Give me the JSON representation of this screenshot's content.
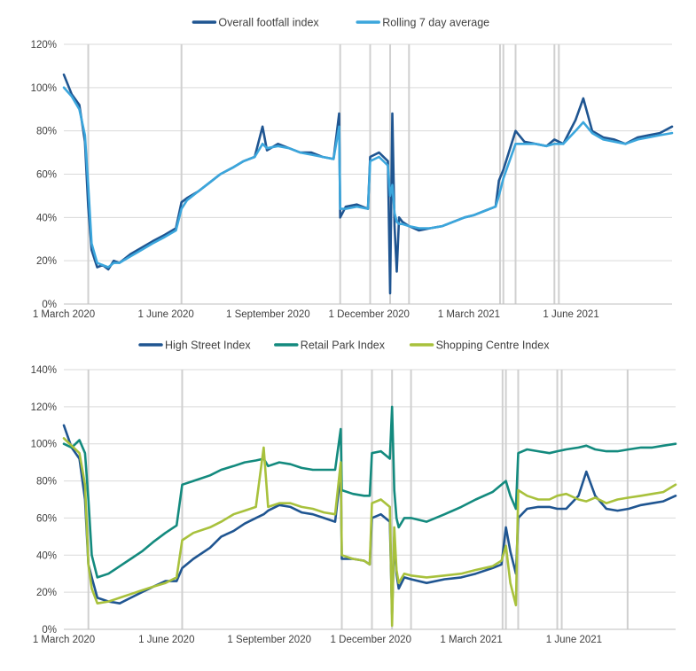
{
  "chart_data": [
    {
      "type": "line",
      "title": "",
      "xlabel": "",
      "ylabel": "",
      "ylim": [
        0,
        1.2
      ],
      "xlim": [
        "2020-03-01",
        "2021-08-31"
      ],
      "y_format": "percent",
      "y_ticks": [
        0,
        0.2,
        0.4,
        0.6,
        0.8,
        1.0,
        1.2
      ],
      "y_tick_labels": [
        "0%",
        "20%",
        "40%",
        "60%",
        "80%",
        "100%",
        "120%"
      ],
      "x_ticks": [
        "2020-03-01",
        "2020-06-01",
        "2020-09-01",
        "2020-12-01",
        "2021-03-01",
        "2021-06-01"
      ],
      "x_tick_labels": [
        "1 March 2020",
        "1 June 2020",
        "1 September 2020",
        "1 December 2020",
        "1 March 2021",
        "1 June 2021"
      ],
      "grid": true,
      "legend_position": "top",
      "event_lines": [
        "2020-03-23",
        "2020-06-15",
        "2020-11-05",
        "2020-12-02",
        "2020-12-20",
        "2021-01-06",
        "2021-03-29",
        "2021-04-01",
        "2021-04-12",
        "2021-05-17",
        "2021-05-21"
      ],
      "series": [
        {
          "name": "Overall footfall index",
          "color": "#1f5591",
          "x": [
            "2020-03-01",
            "2020-03-08",
            "2020-03-15",
            "2020-03-20",
            "2020-03-23",
            "2020-03-26",
            "2020-03-31",
            "2020-04-05",
            "2020-04-10",
            "2020-04-15",
            "2020-04-20",
            "2020-04-30",
            "2020-05-10",
            "2020-05-20",
            "2020-05-31",
            "2020-06-10",
            "2020-06-15",
            "2020-06-20",
            "2020-06-30",
            "2020-07-10",
            "2020-07-20",
            "2020-07-31",
            "2020-08-10",
            "2020-08-20",
            "2020-08-27",
            "2020-08-31",
            "2020-09-10",
            "2020-09-20",
            "2020-09-30",
            "2020-10-10",
            "2020-10-20",
            "2020-10-30",
            "2020-11-04",
            "2020-11-05",
            "2020-11-10",
            "2020-11-20",
            "2020-11-30",
            "2020-12-02",
            "2020-12-10",
            "2020-12-18",
            "2020-12-20",
            "2020-12-22",
            "2020-12-24",
            "2020-12-26",
            "2020-12-28",
            "2020-12-31",
            "2021-01-06",
            "2021-01-15",
            "2021-01-25",
            "2021-02-05",
            "2021-02-15",
            "2021-02-25",
            "2021-03-05",
            "2021-03-15",
            "2021-03-25",
            "2021-03-28",
            "2021-04-01",
            "2021-04-12",
            "2021-04-20",
            "2021-04-30",
            "2021-05-10",
            "2021-05-17",
            "2021-05-25",
            "2021-06-05",
            "2021-06-12",
            "2021-06-20",
            "2021-06-30",
            "2021-07-10",
            "2021-07-20",
            "2021-07-31",
            "2021-08-10",
            "2021-08-20",
            "2021-08-31"
          ],
          "y": [
            1.06,
            0.97,
            0.92,
            0.75,
            0.45,
            0.25,
            0.17,
            0.18,
            0.16,
            0.2,
            0.19,
            0.23,
            0.26,
            0.29,
            0.32,
            0.35,
            0.47,
            0.49,
            0.52,
            0.56,
            0.6,
            0.63,
            0.66,
            0.68,
            0.82,
            0.71,
            0.74,
            0.72,
            0.7,
            0.7,
            0.68,
            0.67,
            0.88,
            0.4,
            0.45,
            0.46,
            0.44,
            0.68,
            0.7,
            0.66,
            0.05,
            0.88,
            0.36,
            0.15,
            0.4,
            0.38,
            0.36,
            0.34,
            0.35,
            0.36,
            0.38,
            0.4,
            0.41,
            0.43,
            0.45,
            0.57,
            0.62,
            0.8,
            0.75,
            0.74,
            0.73,
            0.76,
            0.74,
            0.85,
            0.95,
            0.8,
            0.77,
            0.76,
            0.74,
            0.77,
            0.78,
            0.79,
            0.82
          ]
        },
        {
          "name": "Rolling 7 day average",
          "color": "#3ba6dc",
          "x": [
            "2020-03-01",
            "2020-03-08",
            "2020-03-15",
            "2020-03-20",
            "2020-03-23",
            "2020-03-26",
            "2020-03-31",
            "2020-04-05",
            "2020-04-10",
            "2020-04-15",
            "2020-04-20",
            "2020-04-30",
            "2020-05-10",
            "2020-05-20",
            "2020-05-31",
            "2020-06-10",
            "2020-06-15",
            "2020-06-20",
            "2020-06-30",
            "2020-07-10",
            "2020-07-20",
            "2020-07-31",
            "2020-08-10",
            "2020-08-20",
            "2020-08-27",
            "2020-08-31",
            "2020-09-10",
            "2020-09-20",
            "2020-09-30",
            "2020-10-10",
            "2020-10-20",
            "2020-10-30",
            "2020-11-04",
            "2020-11-05",
            "2020-11-10",
            "2020-11-20",
            "2020-11-30",
            "2020-12-02",
            "2020-12-10",
            "2020-12-18",
            "2020-12-20",
            "2020-12-22",
            "2020-12-24",
            "2020-12-26",
            "2020-12-28",
            "2020-12-31",
            "2021-01-06",
            "2021-01-15",
            "2021-01-25",
            "2021-02-05",
            "2021-02-15",
            "2021-02-25",
            "2021-03-05",
            "2021-03-15",
            "2021-03-25",
            "2021-03-28",
            "2021-04-01",
            "2021-04-12",
            "2021-04-20",
            "2021-04-30",
            "2021-05-10",
            "2021-05-17",
            "2021-05-25",
            "2021-06-05",
            "2021-06-12",
            "2021-06-20",
            "2021-06-30",
            "2021-07-10",
            "2021-07-20",
            "2021-07-31",
            "2021-08-10",
            "2021-08-20",
            "2021-08-31"
          ],
          "y": [
            1.0,
            0.96,
            0.9,
            0.78,
            0.55,
            0.28,
            0.19,
            0.18,
            0.17,
            0.19,
            0.19,
            0.22,
            0.25,
            0.28,
            0.31,
            0.34,
            0.44,
            0.48,
            0.52,
            0.56,
            0.6,
            0.63,
            0.66,
            0.68,
            0.74,
            0.72,
            0.73,
            0.72,
            0.7,
            0.69,
            0.68,
            0.67,
            0.82,
            0.44,
            0.44,
            0.45,
            0.44,
            0.66,
            0.68,
            0.64,
            0.5,
            0.55,
            0.42,
            0.38,
            0.37,
            0.37,
            0.36,
            0.35,
            0.35,
            0.36,
            0.38,
            0.4,
            0.41,
            0.43,
            0.45,
            0.5,
            0.58,
            0.74,
            0.74,
            0.74,
            0.73,
            0.74,
            0.74,
            0.8,
            0.84,
            0.79,
            0.76,
            0.75,
            0.74,
            0.76,
            0.77,
            0.78,
            0.79
          ]
        }
      ]
    },
    {
      "type": "line",
      "title": "",
      "xlabel": "",
      "ylabel": "",
      "ylim": [
        0,
        1.4
      ],
      "xlim": [
        "2020-03-01",
        "2021-08-31"
      ],
      "y_format": "percent",
      "y_ticks": [
        0,
        0.2,
        0.4,
        0.6,
        0.8,
        1.0,
        1.2,
        1.4
      ],
      "y_tick_labels": [
        "0%",
        "20%",
        "40%",
        "60%",
        "80%",
        "100%",
        "120%",
        "140%"
      ],
      "x_ticks": [
        "2020-03-01",
        "2020-06-01",
        "2020-09-01",
        "2020-12-01",
        "2021-03-01",
        "2021-06-01"
      ],
      "x_tick_labels": [
        "1 March 2020",
        "1 June 2020",
        "1 September 2020",
        "1 December 2020",
        "1 March 2021",
        "1 June 2021"
      ],
      "grid": true,
      "legend_position": "top",
      "event_lines": [
        "2020-03-23",
        "2020-06-15",
        "2020-11-05",
        "2020-12-02",
        "2020-12-20",
        "2021-01-06",
        "2021-03-29",
        "2021-04-01",
        "2021-04-12",
        "2021-05-17",
        "2021-05-21",
        "2021-07-19"
      ],
      "series": [
        {
          "name": "High Street Index",
          "color": "#1f5591",
          "x": [
            "2020-03-01",
            "2020-03-08",
            "2020-03-15",
            "2020-03-20",
            "2020-03-23",
            "2020-03-26",
            "2020-03-31",
            "2020-04-10",
            "2020-04-20",
            "2020-04-30",
            "2020-05-10",
            "2020-05-20",
            "2020-05-31",
            "2020-06-10",
            "2020-06-15",
            "2020-06-25",
            "2020-07-10",
            "2020-07-20",
            "2020-07-31",
            "2020-08-10",
            "2020-08-20",
            "2020-08-27",
            "2020-08-31",
            "2020-09-10",
            "2020-09-20",
            "2020-09-30",
            "2020-10-10",
            "2020-10-20",
            "2020-10-30",
            "2020-11-04",
            "2020-11-05",
            "2020-11-15",
            "2020-11-25",
            "2020-11-30",
            "2020-12-02",
            "2020-12-10",
            "2020-12-18",
            "2020-12-20",
            "2020-12-22",
            "2020-12-24",
            "2020-12-26",
            "2020-12-31",
            "2021-01-06",
            "2021-01-20",
            "2021-02-05",
            "2021-02-20",
            "2021-03-05",
            "2021-03-20",
            "2021-03-28",
            "2021-04-01",
            "2021-04-05",
            "2021-04-10",
            "2021-04-12",
            "2021-04-20",
            "2021-04-30",
            "2021-05-10",
            "2021-05-17",
            "2021-05-25",
            "2021-06-05",
            "2021-06-12",
            "2021-06-20",
            "2021-06-30",
            "2021-07-10",
            "2021-07-20",
            "2021-07-31",
            "2021-08-10",
            "2021-08-20",
            "2021-08-31"
          ],
          "y": [
            1.1,
            0.98,
            0.92,
            0.7,
            0.35,
            0.28,
            0.17,
            0.15,
            0.14,
            0.17,
            0.2,
            0.23,
            0.26,
            0.26,
            0.33,
            0.38,
            0.44,
            0.5,
            0.53,
            0.57,
            0.6,
            0.62,
            0.64,
            0.67,
            0.66,
            0.63,
            0.62,
            0.6,
            0.58,
            0.85,
            0.38,
            0.38,
            0.37,
            0.35,
            0.6,
            0.62,
            0.58,
            0.08,
            0.5,
            0.3,
            0.22,
            0.28,
            0.27,
            0.25,
            0.27,
            0.28,
            0.3,
            0.33,
            0.35,
            0.55,
            0.42,
            0.3,
            0.6,
            0.65,
            0.66,
            0.66,
            0.65,
            0.65,
            0.72,
            0.85,
            0.72,
            0.65,
            0.64,
            0.65,
            0.67,
            0.68,
            0.69,
            0.72
          ]
        },
        {
          "name": "Retail Park Index",
          "color": "#138a7e",
          "x": [
            "2020-03-01",
            "2020-03-08",
            "2020-03-15",
            "2020-03-20",
            "2020-03-23",
            "2020-03-26",
            "2020-03-31",
            "2020-04-10",
            "2020-04-20",
            "2020-04-30",
            "2020-05-10",
            "2020-05-20",
            "2020-05-31",
            "2020-06-10",
            "2020-06-15",
            "2020-06-25",
            "2020-07-10",
            "2020-07-20",
            "2020-07-31",
            "2020-08-10",
            "2020-08-20",
            "2020-08-27",
            "2020-08-31",
            "2020-09-10",
            "2020-09-20",
            "2020-09-30",
            "2020-10-10",
            "2020-10-20",
            "2020-10-30",
            "2020-11-04",
            "2020-11-05",
            "2020-11-15",
            "2020-11-25",
            "2020-11-30",
            "2020-12-02",
            "2020-12-10",
            "2020-12-18",
            "2020-12-20",
            "2020-12-22",
            "2020-12-24",
            "2020-12-26",
            "2020-12-31",
            "2021-01-06",
            "2021-01-20",
            "2021-02-05",
            "2021-02-20",
            "2021-03-05",
            "2021-03-20",
            "2021-03-28",
            "2021-04-01",
            "2021-04-05",
            "2021-04-10",
            "2021-04-12",
            "2021-04-20",
            "2021-04-30",
            "2021-05-10",
            "2021-05-17",
            "2021-05-25",
            "2021-06-05",
            "2021-06-12",
            "2021-06-20",
            "2021-06-30",
            "2021-07-10",
            "2021-07-20",
            "2021-07-31",
            "2021-08-10",
            "2021-08-20",
            "2021-08-31"
          ],
          "y": [
            1.0,
            0.98,
            1.02,
            0.95,
            0.7,
            0.4,
            0.28,
            0.3,
            0.34,
            0.38,
            0.42,
            0.47,
            0.52,
            0.56,
            0.78,
            0.8,
            0.83,
            0.86,
            0.88,
            0.9,
            0.91,
            0.92,
            0.88,
            0.9,
            0.89,
            0.87,
            0.86,
            0.86,
            0.86,
            1.08,
            0.75,
            0.73,
            0.72,
            0.72,
            0.95,
            0.96,
            0.92,
            1.2,
            0.75,
            0.6,
            0.55,
            0.6,
            0.6,
            0.58,
            0.62,
            0.66,
            0.7,
            0.74,
            0.78,
            0.8,
            0.72,
            0.65,
            0.95,
            0.97,
            0.96,
            0.95,
            0.96,
            0.97,
            0.98,
            0.99,
            0.97,
            0.96,
            0.96,
            0.97,
            0.98,
            0.98,
            0.99,
            1.0
          ]
        },
        {
          "name": "Shopping Centre Index",
          "color": "#a8c13c",
          "x": [
            "2020-03-01",
            "2020-03-08",
            "2020-03-15",
            "2020-03-20",
            "2020-03-23",
            "2020-03-26",
            "2020-03-31",
            "2020-04-10",
            "2020-04-20",
            "2020-04-30",
            "2020-05-10",
            "2020-05-20",
            "2020-05-31",
            "2020-06-10",
            "2020-06-15",
            "2020-06-25",
            "2020-07-10",
            "2020-07-20",
            "2020-07-31",
            "2020-08-10",
            "2020-08-20",
            "2020-08-27",
            "2020-08-31",
            "2020-09-10",
            "2020-09-20",
            "2020-09-30",
            "2020-10-10",
            "2020-10-20",
            "2020-10-30",
            "2020-11-04",
            "2020-11-05",
            "2020-11-15",
            "2020-11-25",
            "2020-11-30",
            "2020-12-02",
            "2020-12-10",
            "2020-12-18",
            "2020-12-20",
            "2020-12-22",
            "2020-12-24",
            "2020-12-26",
            "2020-12-31",
            "2021-01-06",
            "2021-01-20",
            "2021-02-05",
            "2021-02-20",
            "2021-03-05",
            "2021-03-20",
            "2021-03-28",
            "2021-04-01",
            "2021-04-05",
            "2021-04-10",
            "2021-04-12",
            "2021-04-20",
            "2021-04-30",
            "2021-05-10",
            "2021-05-17",
            "2021-05-25",
            "2021-06-05",
            "2021-06-12",
            "2021-06-20",
            "2021-06-30",
            "2021-07-10",
            "2021-07-20",
            "2021-07-31",
            "2021-08-10",
            "2021-08-20",
            "2021-08-31"
          ],
          "y": [
            1.03,
            0.99,
            0.95,
            0.78,
            0.35,
            0.22,
            0.14,
            0.15,
            0.17,
            0.19,
            0.21,
            0.23,
            0.25,
            0.28,
            0.48,
            0.52,
            0.55,
            0.58,
            0.62,
            0.64,
            0.66,
            0.98,
            0.66,
            0.68,
            0.68,
            0.66,
            0.65,
            0.63,
            0.62,
            0.9,
            0.4,
            0.38,
            0.37,
            0.35,
            0.68,
            0.7,
            0.66,
            0.02,
            0.55,
            0.32,
            0.25,
            0.3,
            0.29,
            0.28,
            0.29,
            0.3,
            0.32,
            0.34,
            0.37,
            0.45,
            0.25,
            0.13,
            0.75,
            0.72,
            0.7,
            0.7,
            0.72,
            0.73,
            0.7,
            0.69,
            0.71,
            0.68,
            0.7,
            0.71,
            0.72,
            0.73,
            0.74,
            0.78
          ]
        }
      ]
    }
  ]
}
